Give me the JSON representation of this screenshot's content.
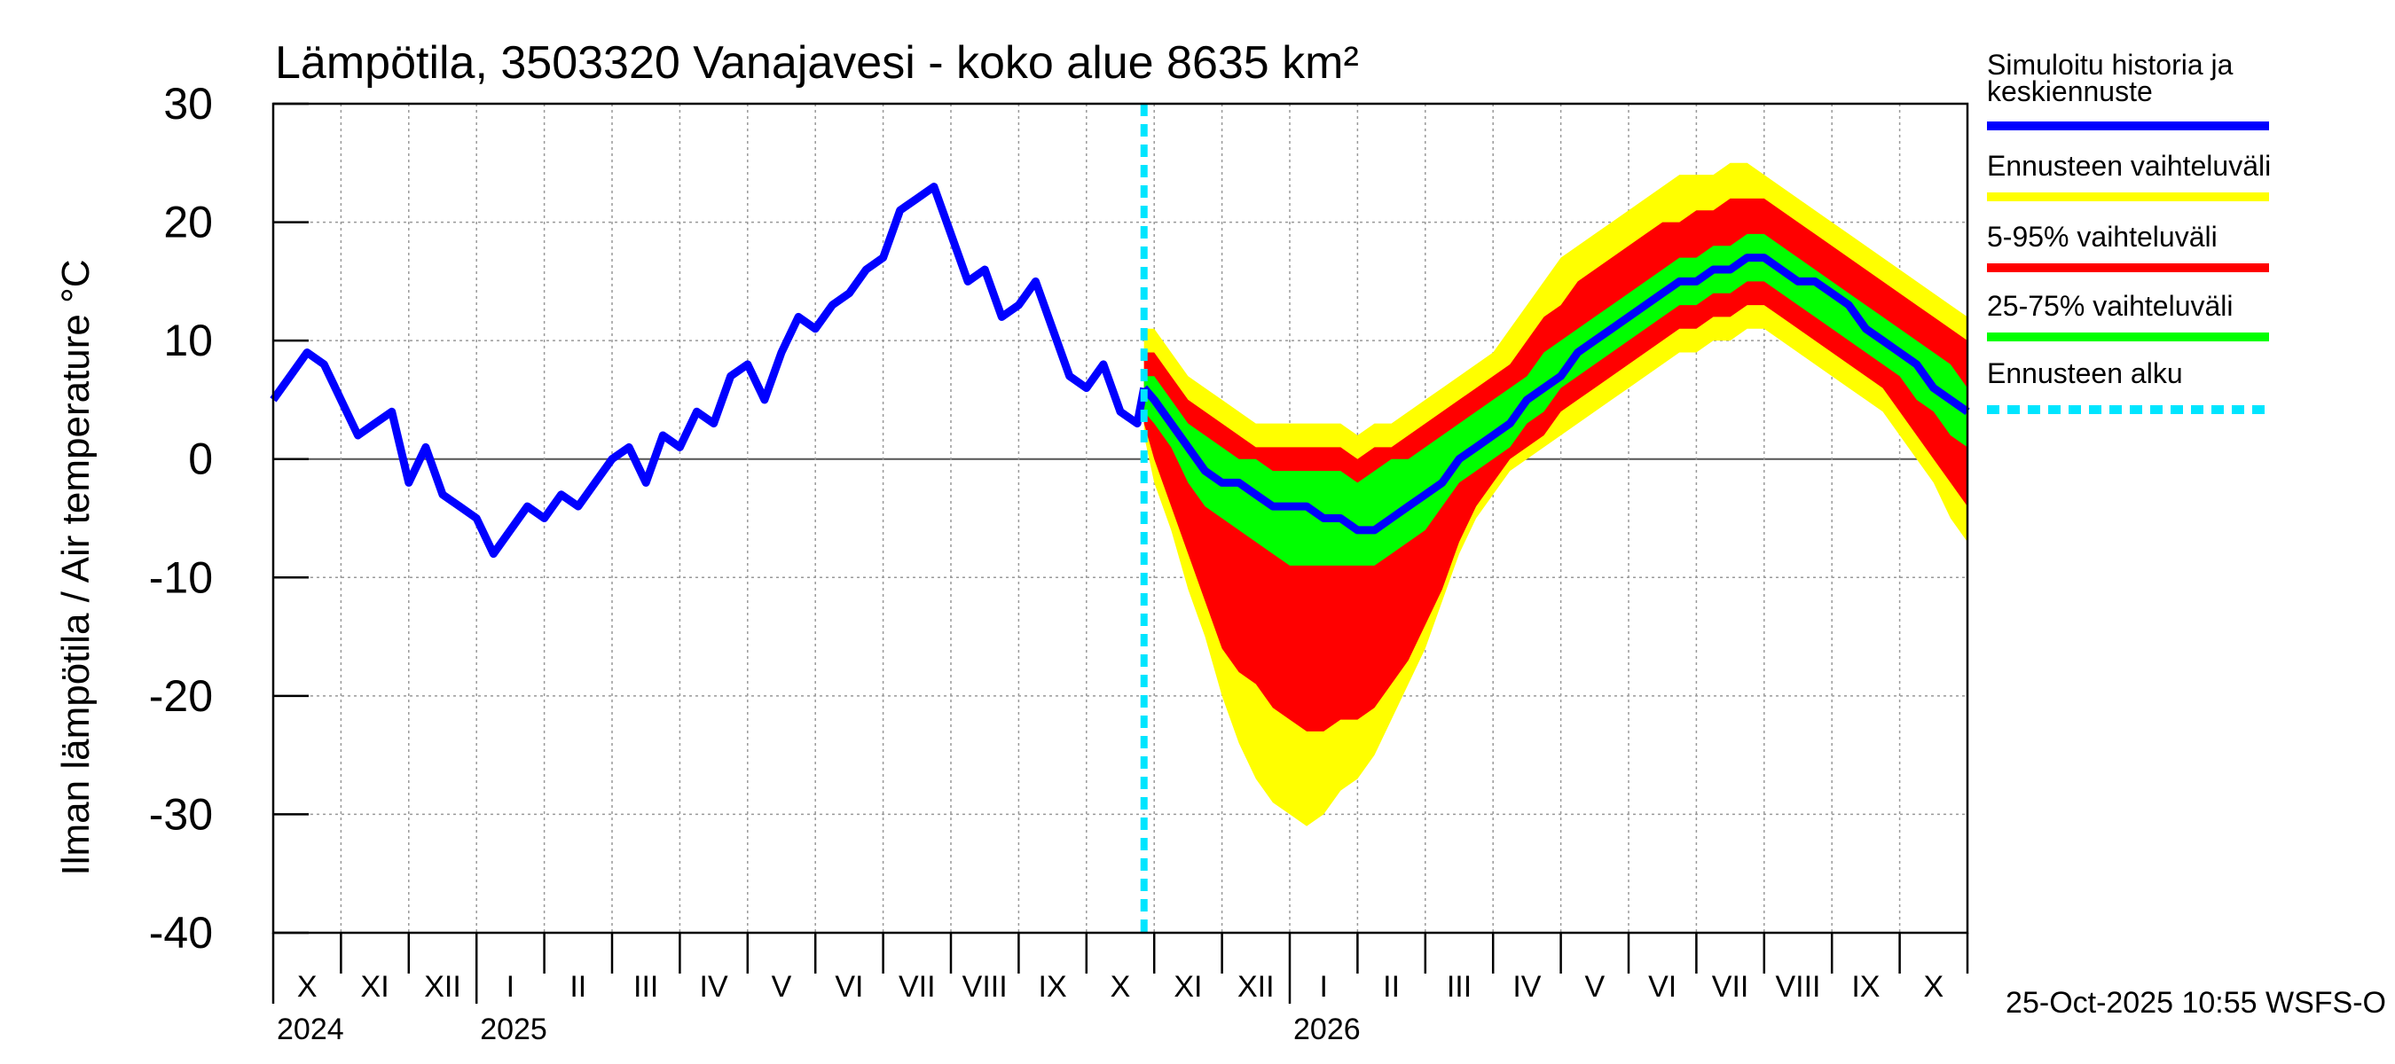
{
  "chart_data": {
    "type": "area",
    "title": "Lämpötila, 3503320 Vanajavesi - koko alue 8635 km²",
    "ylabel": "Ilman lämpötila / Air temperature    °C",
    "ylim": [
      -40,
      30
    ],
    "yticks": [
      30,
      20,
      10,
      0,
      -10,
      -20,
      -30,
      -40
    ],
    "grid": true,
    "months": [
      "X",
      "XI",
      "XII",
      "I",
      "II",
      "III",
      "IV",
      "V",
      "VI",
      "VII",
      "VIII",
      "IX",
      "X",
      "XI",
      "XII",
      "I",
      "II",
      "III",
      "IV",
      "V",
      "VI",
      "VII",
      "VIII",
      "IX",
      "X"
    ],
    "years": [
      {
        "label": "2024",
        "month_index": 0
      },
      {
        "label": "2025",
        "month_index": 3
      },
      {
        "label": "2026",
        "month_index": 15
      }
    ],
    "forecast_start_month": 12.85,
    "legend": {
      "placement": "right",
      "items": [
        {
          "label": "Simuloitu historia ja keskiennuste",
          "color": "#0000ff",
          "style": "solid"
        },
        {
          "label": "Ennusteen vaihteluväli",
          "color": "#ffff00",
          "style": "solid"
        },
        {
          "label": "5-95% vaihteluväli",
          "color": "#ff0000",
          "style": "solid"
        },
        {
          "label": "25-75% vaihteluväli",
          "color": "#00ff00",
          "style": "solid"
        },
        {
          "label": "Ennusteen alku",
          "color": "#00e5ff",
          "style": "dashed"
        }
      ]
    },
    "history": {
      "name": "Simuloitu historia",
      "month": [
        0,
        0.25,
        0.5,
        0.75,
        1,
        1.25,
        1.5,
        1.75,
        2,
        2.25,
        2.5,
        2.75,
        3,
        3.25,
        3.5,
        3.75,
        4,
        4.25,
        4.5,
        4.75,
        5,
        5.25,
        5.5,
        5.75,
        6,
        6.25,
        6.5,
        6.75,
        7,
        7.25,
        7.5,
        7.75,
        8,
        8.25,
        8.5,
        8.75,
        9,
        9.25,
        9.5,
        9.75,
        10,
        10.25,
        10.5,
        10.75,
        11,
        11.25,
        11.5,
        11.75,
        12,
        12.25,
        12.5,
        12.75,
        12.85
      ],
      "value": [
        5,
        7,
        9,
        8,
        5,
        2,
        3,
        4,
        -2,
        1,
        -3,
        -4,
        -5,
        -8,
        -6,
        -4,
        -5,
        -3,
        -4,
        -2,
        0,
        1,
        -2,
        2,
        1,
        4,
        3,
        7,
        8,
        5,
        9,
        12,
        11,
        13,
        14,
        16,
        17,
        21,
        22,
        23,
        19,
        15,
        16,
        12,
        13,
        15,
        11,
        7,
        6,
        8,
        4,
        3,
        6
      ],
      "color": "#0000ff"
    },
    "forecast": {
      "month": [
        12.85,
        13,
        13.25,
        13.5,
        13.75,
        14,
        14.25,
        14.5,
        14.75,
        15,
        15.25,
        15.5,
        15.75,
        16,
        16.25,
        16.5,
        16.75,
        17,
        17.25,
        17.5,
        17.75,
        18,
        18.25,
        18.5,
        18.75,
        19,
        19.25,
        19.5,
        19.75,
        20,
        20.25,
        20.5,
        20.75,
        21,
        21.25,
        21.5,
        21.75,
        22,
        22.25,
        22.5,
        22.75,
        23,
        23.25,
        23.5,
        23.75,
        24,
        24.25,
        24.5,
        24.75,
        25
      ],
      "median": [
        6,
        5,
        3,
        1,
        -1,
        -2,
        -2,
        -3,
        -4,
        -4,
        -4,
        -5,
        -5,
        -6,
        -6,
        -5,
        -4,
        -3,
        -2,
        0,
        1,
        2,
        3,
        5,
        6,
        7,
        9,
        10,
        11,
        12,
        13,
        14,
        15,
        15,
        16,
        16,
        17,
        17,
        16,
        15,
        15,
        14,
        13,
        11,
        10,
        9,
        8,
        6,
        5,
        4
      ],
      "p25": [
        4,
        3,
        1,
        -2,
        -4,
        -5,
        -6,
        -7,
        -8,
        -9,
        -9,
        -9,
        -9,
        -9,
        -9,
        -8,
        -7,
        -6,
        -4,
        -2,
        -1,
        0,
        1,
        3,
        4,
        6,
        7,
        8,
        9,
        10,
        11,
        12,
        13,
        13,
        14,
        14,
        15,
        15,
        14,
        13,
        12,
        11,
        10,
        9,
        8,
        7,
        5,
        4,
        2,
        1
      ],
      "p75": [
        7,
        7,
        5,
        3,
        2,
        1,
        0,
        0,
        -1,
        -1,
        -1,
        -1,
        -1,
        -2,
        -1,
        0,
        0,
        1,
        2,
        3,
        4,
        5,
        6,
        7,
        9,
        10,
        11,
        12,
        13,
        14,
        15,
        16,
        17,
        17,
        18,
        18,
        19,
        19,
        18,
        17,
        16,
        15,
        14,
        13,
        12,
        11,
        10,
        9,
        8,
        6
      ],
      "p5": [
        3,
        0,
        -4,
        -8,
        -12,
        -16,
        -18,
        -19,
        -21,
        -22,
        -23,
        -23,
        -22,
        -22,
        -21,
        -19,
        -17,
        -14,
        -11,
        -7,
        -4,
        -2,
        0,
        1,
        2,
        4,
        5,
        6,
        7,
        8,
        9,
        10,
        11,
        11,
        12,
        12,
        13,
        13,
        12,
        11,
        10,
        9,
        8,
        7,
        6,
        4,
        2,
        0,
        -2,
        -4
      ],
      "p95": [
        9,
        9,
        7,
        5,
        4,
        3,
        2,
        1,
        1,
        1,
        1,
        1,
        1,
        0,
        1,
        1,
        2,
        3,
        4,
        5,
        6,
        7,
        8,
        10,
        12,
        13,
        15,
        16,
        17,
        18,
        19,
        20,
        20,
        21,
        21,
        22,
        22,
        22,
        21,
        20,
        19,
        18,
        17,
        16,
        15,
        14,
        13,
        12,
        11,
        10
      ],
      "min": [
        2,
        -2,
        -6,
        -11,
        -15,
        -20,
        -24,
        -27,
        -29,
        -30,
        -31,
        -30,
        -28,
        -27,
        -25,
        -22,
        -19,
        -16,
        -12,
        -8,
        -5,
        -3,
        -1,
        0,
        1,
        2,
        3,
        4,
        5,
        6,
        7,
        8,
        9,
        9,
        10,
        10,
        11,
        11,
        10,
        9,
        8,
        7,
        6,
        5,
        4,
        2,
        0,
        -2,
        -5,
        -7
      ],
      "max": [
        11,
        11,
        9,
        7,
        6,
        5,
        4,
        3,
        3,
        3,
        3,
        3,
        3,
        2,
        3,
        3,
        4,
        5,
        6,
        7,
        8,
        9,
        11,
        13,
        15,
        17,
        18,
        19,
        20,
        21,
        22,
        23,
        24,
        24,
        24,
        25,
        25,
        24,
        23,
        22,
        21,
        20,
        19,
        18,
        17,
        16,
        15,
        14,
        13,
        12
      ]
    },
    "footer": "25-Oct-2025 10:55 WSFS-O"
  }
}
